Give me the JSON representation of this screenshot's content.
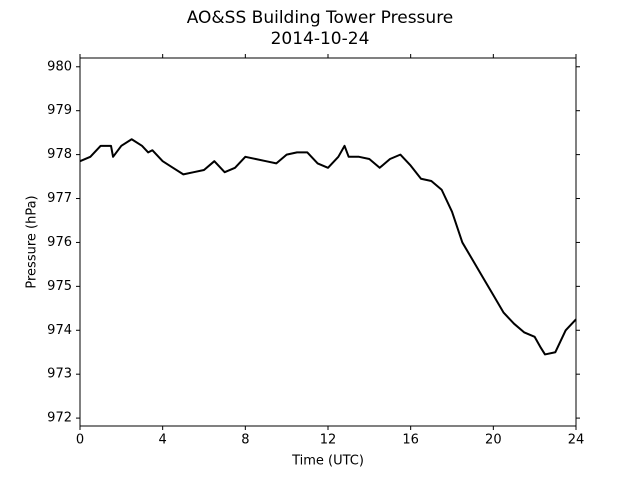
{
  "chart_data": {
    "type": "line",
    "title": "AO&SS Building Tower Pressure",
    "subtitle": "2014-10-24",
    "x_label": "Time (UTC)",
    "y_label": "Pressure (hPa)",
    "x": [
      0,
      0.5,
      1.0,
      1.5,
      1.6,
      2.0,
      2.5,
      3.0,
      3.3,
      3.5,
      4.0,
      4.5,
      5.0,
      5.5,
      6.0,
      6.5,
      7.0,
      7.5,
      8.0,
      8.5,
      9.0,
      9.5,
      10.0,
      10.5,
      11.0,
      11.5,
      12.0,
      12.5,
      12.8,
      13.0,
      13.5,
      14.0,
      14.5,
      15.0,
      15.5,
      16.0,
      16.5,
      17.0,
      17.5,
      18.0,
      18.5,
      19.0,
      19.5,
      20.0,
      20.5,
      21.0,
      21.5,
      22.0,
      22.3,
      22.5,
      23.0,
      23.5,
      24.0
    ],
    "series": [
      {
        "name": "Pressure",
        "color": "#000000",
        "values": [
          977.85,
          977.95,
          978.2,
          978.2,
          977.95,
          978.2,
          978.35,
          978.2,
          978.05,
          978.1,
          977.85,
          977.7,
          977.55,
          977.6,
          977.65,
          977.85,
          977.6,
          977.7,
          977.95,
          977.9,
          977.85,
          977.8,
          978.0,
          978.05,
          978.05,
          977.8,
          977.7,
          977.95,
          978.2,
          977.95,
          977.95,
          977.9,
          977.7,
          977.9,
          978.0,
          977.75,
          977.45,
          977.4,
          977.2,
          976.7,
          976.0,
          975.6,
          975.2,
          974.8,
          974.4,
          974.15,
          973.95,
          973.85,
          973.6,
          973.45,
          973.5,
          974.0,
          974.25
        ]
      }
    ],
    "xlim": [
      0,
      24
    ],
    "xticks": [
      0,
      4,
      8,
      12,
      16,
      20,
      24
    ],
    "ylim": [
      971.82,
      980.2
    ],
    "yticks": [
      972,
      973,
      974,
      975,
      976,
      977,
      978,
      979,
      980
    ],
    "grid": false
  }
}
